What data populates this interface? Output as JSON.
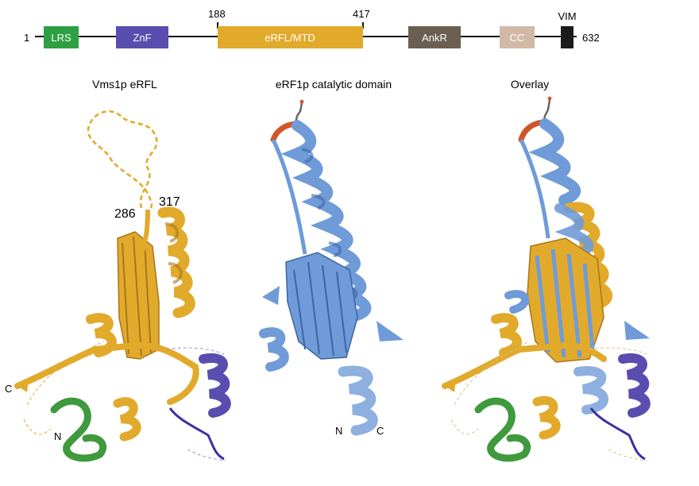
{
  "domain_map": {
    "start": "1",
    "end": "632",
    "positions": [
      "188",
      "417"
    ],
    "domains": [
      {
        "label": "LRS",
        "color": "#2ea043"
      },
      {
        "label": "ZnF",
        "color": "#5a4db0"
      },
      {
        "label": "eRFL/MTD",
        "color": "#e2aa2b"
      },
      {
        "label": "AnkR",
        "color": "#6b5f52"
      },
      {
        "label": "CC",
        "color": "#d2b9a6"
      },
      {
        "label": "VIM",
        "color": "#1b1b1b"
      }
    ]
  },
  "panels": [
    {
      "title": "Vms1p eRFL"
    },
    {
      "title": "eRF1p catalytic domain"
    },
    {
      "title": "Overlay"
    }
  ],
  "annotations": {
    "res_a": "286",
    "res_b": "317",
    "c_term_left": "C",
    "n_term_left": "N",
    "n_term_mid": "N",
    "c_term_mid": "C"
  },
  "colors": {
    "gold": "#e2aa2b",
    "gold_dark": "#a8761a",
    "blue": "#6f9bd8",
    "blue_dark": "#3d65a6",
    "green": "#3f9a3e",
    "purple": "#5a4db0",
    "orange": "#d2552a",
    "line": "#111111"
  }
}
